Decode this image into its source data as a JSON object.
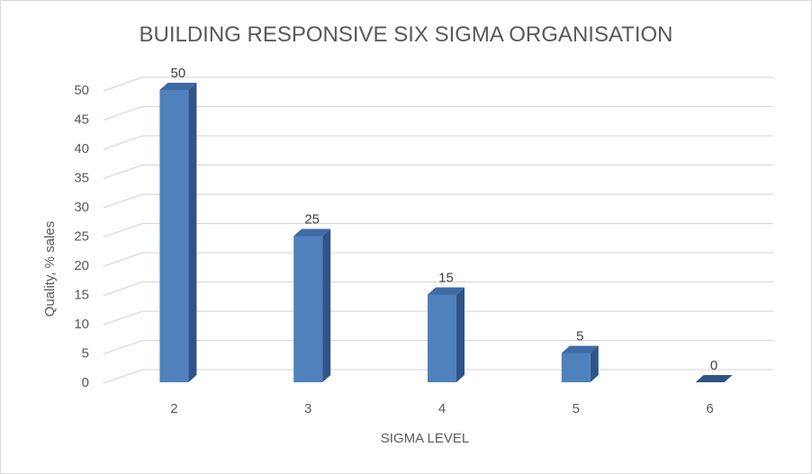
{
  "chart_data": {
    "type": "bar",
    "title": "BUILDING RESPONSIVE SIX SIGMA ORGANISATION",
    "xlabel": "SIGMA LEVEL",
    "ylabel": "Quality, % sales",
    "categories": [
      "2",
      "3",
      "4",
      "5",
      "6"
    ],
    "series": [
      {
        "values": [
          50,
          25,
          15,
          5,
          0
        ]
      }
    ],
    "data_labels": [
      "50",
      "25",
      "15",
      "5",
      "0"
    ],
    "y_ticks": [
      "0",
      "5",
      "10",
      "15",
      "20",
      "25",
      "30",
      "35",
      "40",
      "45",
      "50"
    ],
    "ylim": [
      0,
      55
    ],
    "y_step": 5,
    "grid": true,
    "legend": "none",
    "style": "3d-column",
    "colors": {
      "bar_front": "#4f81bd",
      "bar_side": "#2f5486",
      "bar_top": "#3e6aa6",
      "grid": "#d9d9d9",
      "text": "#595959"
    }
  }
}
